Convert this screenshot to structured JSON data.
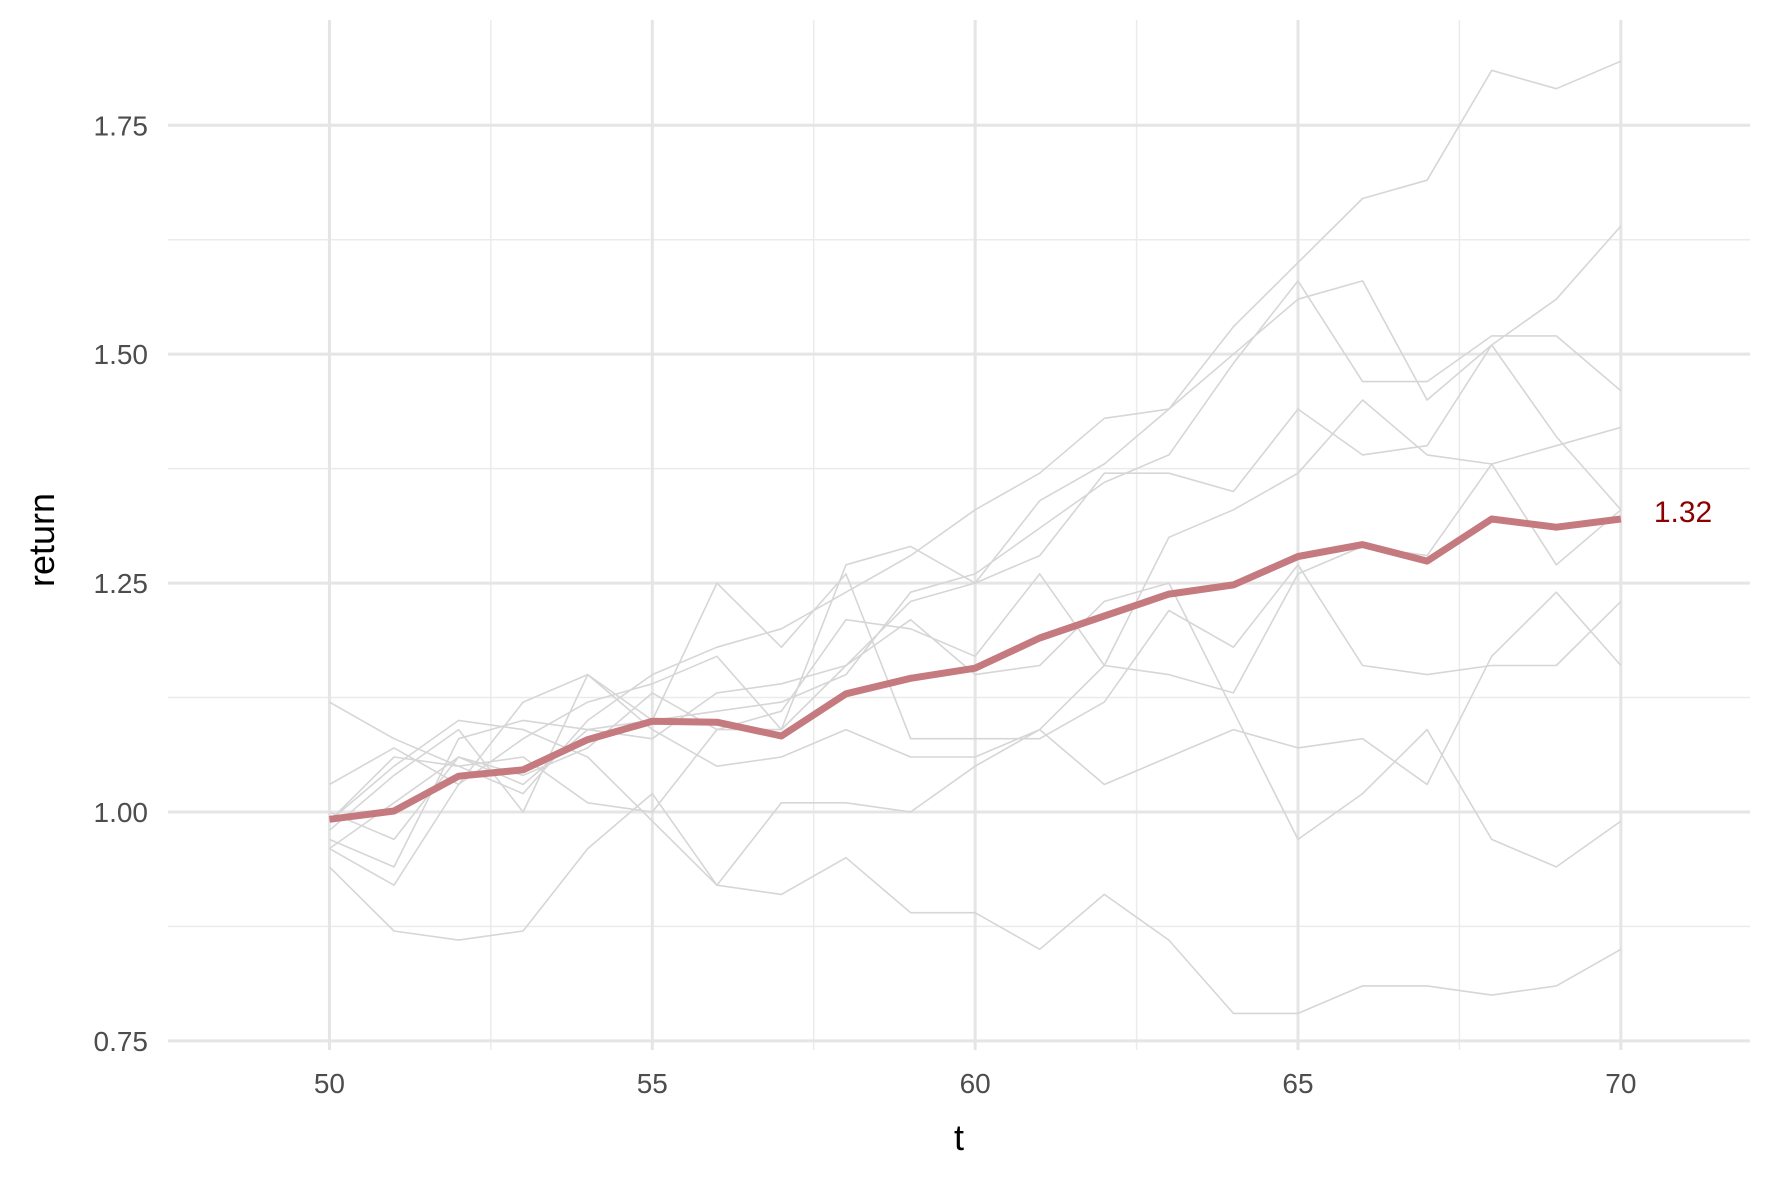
{
  "chart_data": {
    "type": "line",
    "title": "",
    "xlabel": "t",
    "ylabel": "return",
    "xlim": [
      47.5,
      72
    ],
    "ylim": [
      0.74,
      1.865
    ],
    "x_ticks": [
      50,
      55,
      60,
      65,
      70
    ],
    "y_ticks": [
      0.75,
      1.0,
      1.25,
      1.5,
      1.75
    ],
    "y_tick_labels": [
      "0.75",
      "1.00",
      "1.25",
      "1.50",
      "1.75"
    ],
    "grid": true,
    "legend": "none",
    "x": [
      50,
      51,
      52,
      53,
      54,
      55,
      56,
      57,
      58,
      59,
      60,
      61,
      62,
      63,
      64,
      65,
      66,
      67,
      68,
      69,
      70
    ],
    "highlight": {
      "values": [
        0.992,
        1.001,
        1.039,
        1.046,
        1.079,
        1.099,
        1.098,
        1.083,
        1.129,
        1.146,
        1.157,
        1.19,
        1.214,
        1.238,
        1.248,
        1.279,
        1.292,
        1.274,
        1.32,
        1.311,
        1.32
      ],
      "color": "#c47a7e",
      "end_label": "1.32",
      "end_label_color": "#8b0000"
    },
    "background_series_color": "#d6d6d6",
    "background_series": [
      {
        "values": [
          0.99,
          1.06,
          1.05,
          1.02,
          1.1,
          1.15,
          1.18,
          1.2,
          1.24,
          1.28,
          1.33,
          1.37,
          1.43,
          1.44,
          1.53,
          1.6,
          1.67,
          1.69,
          1.81,
          1.79,
          1.82
        ]
      },
      {
        "values": [
          1.03,
          1.07,
          1.03,
          1.08,
          1.12,
          1.14,
          1.17,
          1.09,
          1.16,
          1.23,
          1.25,
          1.34,
          1.38,
          1.44,
          1.5,
          1.56,
          1.58,
          1.45,
          1.51,
          1.56,
          1.64
        ]
      },
      {
        "values": [
          0.96,
          1.01,
          1.06,
          1.03,
          1.09,
          1.1,
          1.11,
          1.12,
          1.15,
          1.24,
          1.26,
          1.31,
          1.36,
          1.39,
          1.49,
          1.58,
          1.47,
          1.47,
          1.52,
          1.52,
          1.46
        ]
      },
      {
        "values": [
          1.0,
          0.97,
          1.06,
          1.04,
          1.07,
          1.13,
          1.09,
          1.09,
          1.27,
          1.29,
          1.25,
          1.28,
          1.37,
          1.37,
          1.35,
          1.44,
          1.39,
          1.4,
          1.51,
          1.41,
          1.33
        ]
      },
      {
        "values": [
          1.12,
          1.08,
          1.05,
          1.06,
          1.01,
          1.0,
          1.09,
          1.11,
          1.21,
          1.2,
          1.17,
          1.26,
          1.16,
          1.3,
          1.33,
          1.37,
          1.45,
          1.39,
          1.38,
          1.4,
          1.42
        ]
      },
      {
        "values": [
          0.94,
          0.87,
          0.86,
          0.87,
          0.96,
          1.02,
          0.92,
          1.01,
          1.01,
          1.0,
          1.05,
          1.09,
          1.16,
          1.15,
          1.13,
          1.26,
          1.29,
          1.28,
          1.38,
          1.27,
          1.33
        ]
      },
      {
        "values": [
          0.98,
          1.04,
          1.09,
          1.0,
          1.15,
          1.1,
          1.25,
          1.18,
          1.26,
          1.08,
          1.08,
          1.08,
          1.12,
          1.22,
          1.18,
          1.27,
          1.16,
          1.15,
          1.16,
          1.16,
          1.23
        ]
      },
      {
        "values": [
          0.96,
          0.92,
          1.03,
          1.12,
          1.15,
          1.09,
          1.05,
          1.06,
          1.09,
          1.06,
          1.06,
          1.09,
          1.03,
          1.06,
          1.09,
          1.07,
          1.08,
          1.03,
          1.17,
          1.24,
          1.16
        ]
      },
      {
        "values": [
          0.97,
          0.94,
          1.08,
          1.1,
          1.09,
          1.08,
          1.13,
          1.14,
          1.16,
          1.21,
          1.15,
          1.16,
          1.23,
          1.25,
          1.11,
          0.97,
          1.02,
          1.09,
          0.97,
          0.94,
          0.99
        ]
      },
      {
        "values": [
          0.99,
          1.05,
          1.1,
          1.09,
          1.06,
          0.99,
          0.92,
          0.91,
          0.95,
          0.89,
          0.89,
          0.85,
          0.91,
          0.86,
          0.78,
          0.78,
          0.81,
          0.81,
          0.8,
          0.81,
          0.85
        ]
      }
    ]
  }
}
